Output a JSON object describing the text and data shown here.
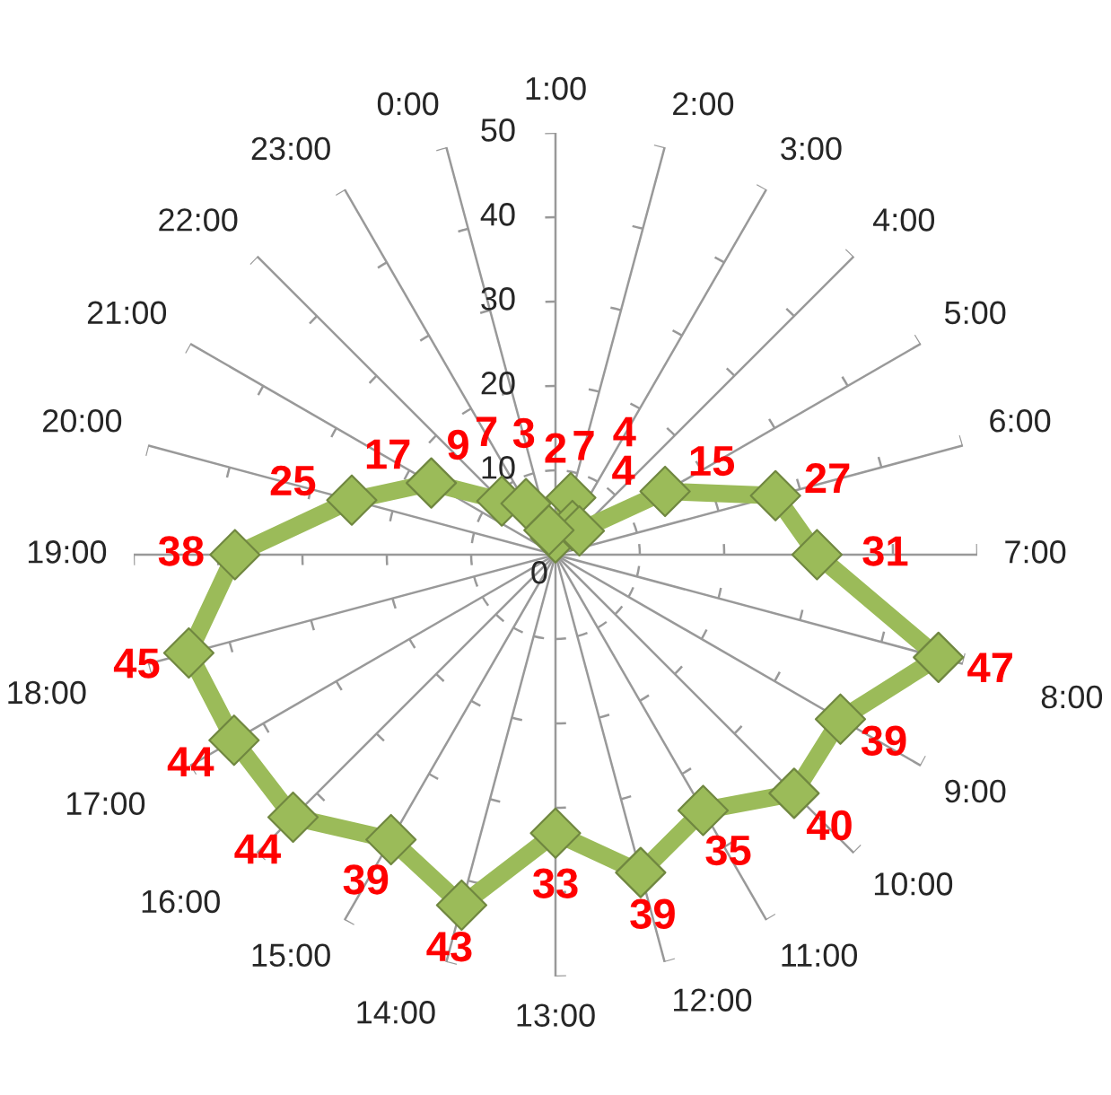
{
  "chart_data": {
    "type": "radar",
    "categories": [
      "1:00",
      "2:00",
      "3:00",
      "4:00",
      "5:00",
      "6:00",
      "7:00",
      "8:00",
      "9:00",
      "10:00",
      "11:00",
      "12:00",
      "13:00",
      "14:00",
      "15:00",
      "16:00",
      "17:00",
      "18:00",
      "19:00",
      "20:00",
      "21:00",
      "22:00",
      "23:00",
      "0:00"
    ],
    "series": [
      {
        "color": "#9bbb59",
        "values": [
          2,
          7,
          4,
          4,
          15,
          27,
          31,
          47,
          39,
          40,
          35,
          39,
          33,
          43,
          39,
          44,
          44,
          45,
          38,
          25,
          17,
          9,
          7,
          3
        ]
      }
    ],
    "ylim": [
      0,
      50
    ],
    "yticks": [
      0,
      10,
      20,
      30,
      40,
      50
    ],
    "grid": "x",
    "marker": "diamond",
    "line_style": "solid",
    "data_labels": true
  }
}
